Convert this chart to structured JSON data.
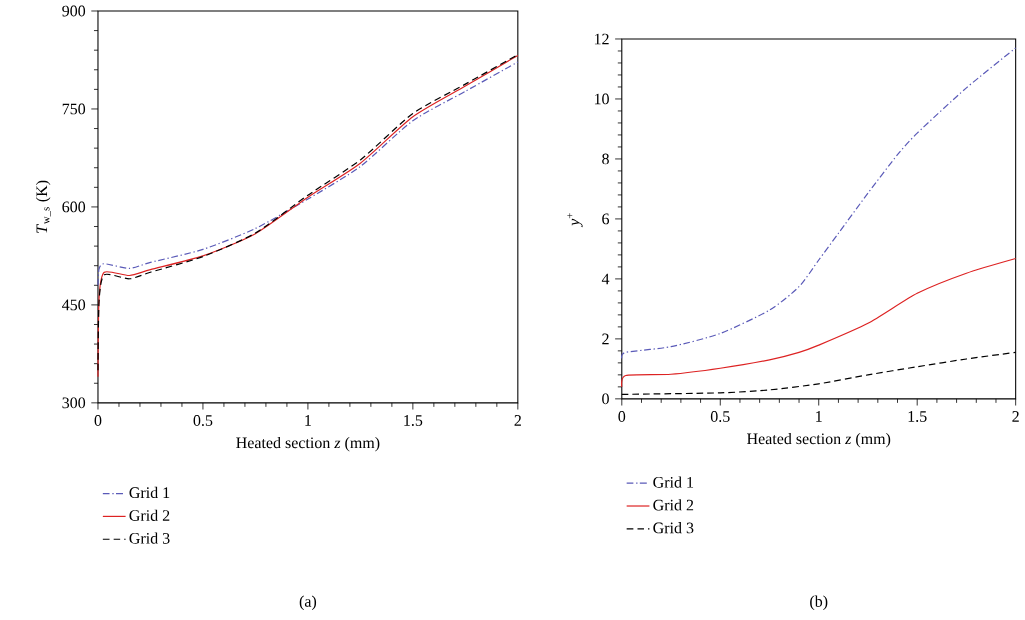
{
  "chart_data": [
    {
      "type": "line",
      "xlabel": "Heated section *z* (mm)",
      "ylabel": "*T*$_{w_s}$ (K)",
      "xlim": [
        0,
        2
      ],
      "ylim": [
        300,
        900
      ],
      "xticks": [
        0,
        0.5,
        1,
        1.5,
        2
      ],
      "yticks": [
        300,
        450,
        600,
        750,
        900
      ],
      "legend": "bottom",
      "annotations": [
        "(a)"
      ],
      "series": [
        {
          "name": "Grid 1",
          "color": "#5a5ab8",
          "line_style": "dashdot",
          "x": [
            0,
            0.005,
            0.03,
            0.15,
            0.25,
            0.5,
            0.75,
            1,
            1.25,
            1.5,
            1.75,
            2
          ],
          "values": [
            480,
            505,
            513,
            506,
            515,
            535,
            567,
            612,
            662,
            732,
            777,
            822
          ]
        },
        {
          "name": "Grid 2",
          "color": "#dd2222",
          "line_style": "solid",
          "x": [
            0,
            0.005,
            0.03,
            0.15,
            0.25,
            0.5,
            0.75,
            1,
            1.25,
            1.5,
            1.75,
            2
          ],
          "values": [
            340,
            460,
            500,
            495,
            504,
            525,
            559,
            615,
            667,
            738,
            785,
            832
          ]
        },
        {
          "name": "Grid 3",
          "color": "#000000",
          "line_style": "dashed",
          "x": [
            0,
            0.005,
            0.03,
            0.15,
            0.25,
            0.5,
            0.75,
            1,
            1.25,
            1.5,
            1.75,
            2
          ],
          "values": [
            350,
            455,
            496,
            490,
            500,
            524,
            560,
            618,
            672,
            743,
            788,
            833
          ]
        }
      ]
    },
    {
      "type": "line",
      "xlabel": "Heated section *z* (mm)",
      "ylabel": "*y*$^{+}$",
      "xlim": [
        0,
        2
      ],
      "ylim": [
        0,
        12
      ],
      "xticks": [
        0,
        0.5,
        1,
        1.5,
        2
      ],
      "yticks": [
        0,
        2,
        4,
        6,
        8,
        10,
        12
      ],
      "legend": "bottom",
      "annotations": [
        "(b)"
      ],
      "series": [
        {
          "name": "Grid 1",
          "color": "#5a5ab8",
          "line_style": "dashdot",
          "x": [
            0,
            0.02,
            0.25,
            0.5,
            0.75,
            0.9,
            1,
            1.1,
            1.25,
            1.4,
            1.5,
            1.75,
            2
          ],
          "values": [
            1.35,
            1.55,
            1.74,
            2.18,
            2.96,
            3.74,
            4.63,
            5.52,
            6.86,
            8.14,
            8.86,
            10.37,
            11.7
          ]
        },
        {
          "name": "Grid 2",
          "color": "#dd2222",
          "line_style": "solid",
          "x": [
            0,
            0.02,
            0.25,
            0.5,
            0.75,
            0.9,
            1,
            1.25,
            1.5,
            1.75,
            2
          ],
          "values": [
            0.4,
            0.78,
            0.82,
            1.02,
            1.3,
            1.55,
            1.79,
            2.52,
            3.52,
            4.19,
            4.68
          ]
        },
        {
          "name": "Grid 3",
          "color": "#000000",
          "line_style": "dashed",
          "x": [
            0,
            0.5,
            0.75,
            1,
            1.25,
            1.5,
            1.75,
            2
          ],
          "values": [
            0.15,
            0.2,
            0.3,
            0.5,
            0.8,
            1.07,
            1.33,
            1.55
          ]
        }
      ]
    }
  ]
}
